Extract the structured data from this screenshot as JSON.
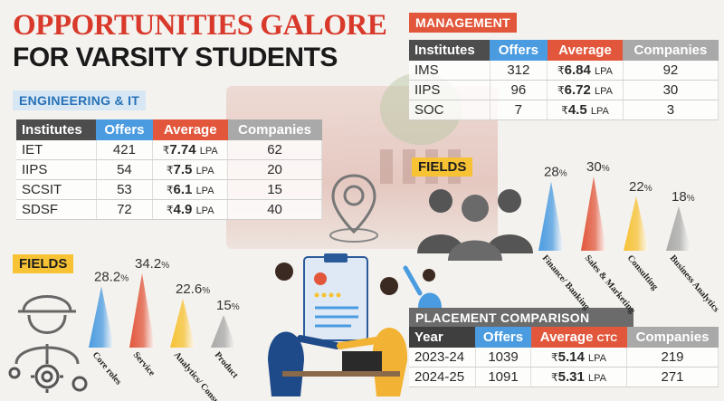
{
  "headline": {
    "line1": "OPPORTUNITIES GALORE",
    "line2": "FOR VARSITY STUDENTS"
  },
  "engineering": {
    "heading": "ENGINEERING & IT",
    "columns": [
      "Institutes",
      "Offers",
      "Average",
      "Companies"
    ],
    "rows": [
      {
        "institute": "IET",
        "offers": "421",
        "avg": "7.74",
        "companies": "62"
      },
      {
        "institute": "IIPS",
        "offers": "54",
        "avg": "7.5",
        "companies": "20"
      },
      {
        "institute": "SCSIT",
        "offers": "53",
        "avg": "6.1",
        "companies": "15"
      },
      {
        "institute": "SDSF",
        "offers": "72",
        "avg": "4.9",
        "companies": "40"
      }
    ]
  },
  "management": {
    "heading": "MANAGEMENT",
    "columns": [
      "Institutes",
      "Offers",
      "Average",
      "Companies"
    ],
    "rows": [
      {
        "institute": "IMS",
        "offers": "312",
        "avg": "6.84",
        "companies": "92"
      },
      {
        "institute": "IIPS",
        "offers": "96",
        "avg": "6.72",
        "companies": "30"
      },
      {
        "institute": "SOC",
        "offers": "7",
        "avg": "4.5",
        "companies": "3"
      }
    ]
  },
  "placement": {
    "heading": "PLACEMENT COMPARISON",
    "columns": [
      "Year",
      "Offers",
      "Average",
      "Companies"
    ],
    "avg_suffix": "CTC",
    "rows": [
      {
        "year": "2023-24",
        "offers": "1039",
        "avg": "5.14",
        "companies": "219"
      },
      {
        "year": "2024-25",
        "offers": "1091",
        "avg": "5.31",
        "companies": "271"
      }
    ]
  },
  "currency_symbol": "₹",
  "unit": "LPA",
  "fields_label": "FIELDS",
  "colors": {
    "red": "#e2573c",
    "blue": "#4a9be0",
    "yellow": "#f7c233",
    "grey": "#a9a9a9",
    "dark": "#4d4d4d"
  },
  "chart_data": [
    {
      "type": "bar",
      "categories": [
        "Core roles",
        "Service",
        "Analytics/ Consulting",
        "Product"
      ],
      "values": [
        28.2,
        34.2,
        22.6,
        15
      ],
      "unit": "%",
      "colors": [
        "#4a9be0",
        "#e2573c",
        "#f7c233",
        "#a9a9a9"
      ]
    },
    {
      "type": "bar",
      "categories": [
        "Finance/ Banking",
        "Sales & Marketing",
        "Consulting",
        "Business Analytics"
      ],
      "values": [
        28,
        30,
        22,
        18
      ],
      "unit": "%",
      "colors": [
        "#4a9be0",
        "#e2573c",
        "#f7c233",
        "#a9a9a9"
      ]
    }
  ]
}
